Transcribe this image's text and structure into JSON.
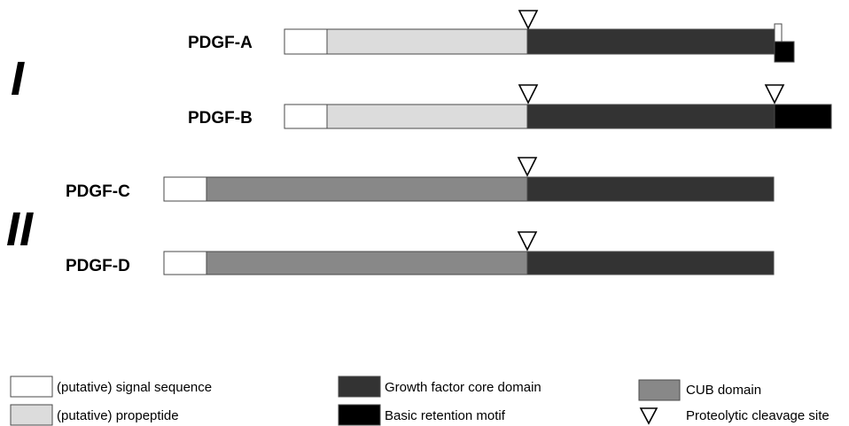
{
  "colors": {
    "signal": "#ffffff",
    "propeptide": "#dcdcdc",
    "core": "#333333",
    "retention": "#000000",
    "cub": "#888888"
  },
  "groups": [
    {
      "id": "group-1",
      "label": "I"
    },
    {
      "id": "group-2",
      "label": "II"
    }
  ],
  "proteins": [
    {
      "id": "pdgf-a",
      "label": "PDGF-A"
    },
    {
      "id": "pdgf-b",
      "label": "PDGF-B"
    },
    {
      "id": "pdgf-c",
      "label": "PDGF-C"
    },
    {
      "id": "pdgf-d",
      "label": "PDGF-D"
    }
  ],
  "legend": {
    "signal": "(putative) signal sequence",
    "propeptide": "(putative) propeptide",
    "core": "Growth factor core domain",
    "retention": "Basic retention motif",
    "cub": "CUB domain",
    "cleavage": "Proteolytic cleavage site"
  }
}
